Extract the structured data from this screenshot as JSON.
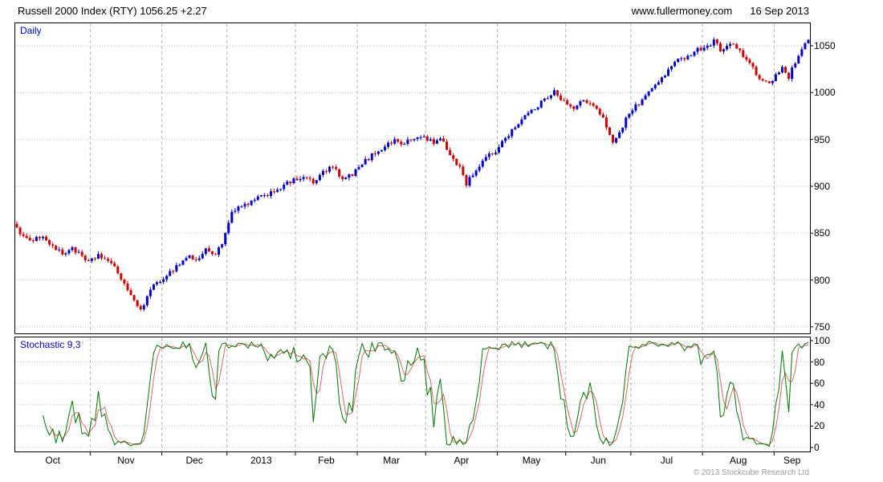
{
  "header": {
    "title": "Russell 2000 Index (RTY) 1056.25 +2.27",
    "site": "www.fullermoney.com",
    "date": "16 Sep 2013"
  },
  "main_chart": {
    "label": "Daily"
  },
  "stochastic": {
    "label": "Stochastic 9,3"
  },
  "footer": {
    "copyright": "© 2013 Stockcube Research Ltd"
  },
  "colors": {
    "up": "#0000cc",
    "down": "#cc0000",
    "k_line": "#007700",
    "d_line": "#e06666",
    "grid": "#bdbdbd",
    "grid2": "#b5b5b5",
    "panel_label": "#0000cc",
    "axis": "#000000"
  },
  "chart_data": {
    "type": "candlestick",
    "title": "Russell 2000 Index (RTY)",
    "timeframe": "Daily",
    "last_price": 1056.25,
    "change": "+2.27",
    "date": "16 Sep 2013",
    "days": 244,
    "y_axis": {
      "ticks": [
        750,
        800,
        850,
        900,
        950,
        1000,
        1050
      ],
      "range": [
        743,
        1074
      ]
    },
    "months": [
      {
        "label": "Oct",
        "start": 0
      },
      {
        "label": "Nov",
        "start": 23
      },
      {
        "label": "Dec",
        "start": 45
      },
      {
        "label": "2013",
        "start": 65
      },
      {
        "label": "Feb",
        "start": 86
      },
      {
        "label": "Mar",
        "start": 105
      },
      {
        "label": "Apr",
        "start": 126
      },
      {
        "label": "May",
        "start": 148
      },
      {
        "label": "Jun",
        "start": 169
      },
      {
        "label": "Jul",
        "start": 189
      },
      {
        "label": "Aug",
        "start": 211
      },
      {
        "label": "Sep",
        "start": 233
      }
    ],
    "anchors": [
      [
        0,
        856
      ],
      [
        2,
        846
      ],
      [
        4,
        840
      ],
      [
        6,
        848
      ],
      [
        9,
        843
      ],
      [
        12,
        833
      ],
      [
        14,
        827
      ],
      [
        17,
        835
      ],
      [
        20,
        824
      ],
      [
        22,
        818
      ],
      [
        25,
        827
      ],
      [
        28,
        820
      ],
      [
        31,
        808
      ],
      [
        34,
        790
      ],
      [
        36,
        776
      ],
      [
        38,
        769
      ],
      [
        40,
        782
      ],
      [
        42,
        793
      ],
      [
        44,
        800
      ],
      [
        47,
        808
      ],
      [
        50,
        818
      ],
      [
        53,
        826
      ],
      [
        55,
        820
      ],
      [
        58,
        832
      ],
      [
        61,
        828
      ],
      [
        63,
        840
      ],
      [
        64,
        848
      ],
      [
        66,
        872
      ],
      [
        69,
        878
      ],
      [
        73,
        885
      ],
      [
        77,
        892
      ],
      [
        81,
        899
      ],
      [
        85,
        906
      ],
      [
        88,
        911
      ],
      [
        91,
        903
      ],
      [
        94,
        915
      ],
      [
        97,
        921
      ],
      [
        100,
        906
      ],
      [
        104,
        916
      ],
      [
        107,
        927
      ],
      [
        110,
        936
      ],
      [
        113,
        943
      ],
      [
        116,
        949
      ],
      [
        119,
        946
      ],
      [
        122,
        951
      ],
      [
        125,
        953
      ],
      [
        128,
        946
      ],
      [
        130,
        951
      ],
      [
        133,
        934
      ],
      [
        136,
        920
      ],
      [
        138,
        903
      ],
      [
        141,
        918
      ],
      [
        144,
        930
      ],
      [
        147,
        938
      ],
      [
        150,
        952
      ],
      [
        153,
        964
      ],
      [
        156,
        975
      ],
      [
        159,
        983
      ],
      [
        162,
        992
      ],
      [
        165,
        1003
      ],
      [
        168,
        990
      ],
      [
        171,
        982
      ],
      [
        174,
        993
      ],
      [
        177,
        985
      ],
      [
        180,
        972
      ],
      [
        183,
        948
      ],
      [
        185,
        958
      ],
      [
        188,
        978
      ],
      [
        191,
        989
      ],
      [
        194,
        1000
      ],
      [
        197,
        1012
      ],
      [
        200,
        1024
      ],
      [
        203,
        1034
      ],
      [
        206,
        1040
      ],
      [
        209,
        1046
      ],
      [
        212,
        1050
      ],
      [
        214,
        1055
      ],
      [
        216,
        1046
      ],
      [
        219,
        1053
      ],
      [
        222,
        1044
      ],
      [
        225,
        1030
      ],
      [
        228,
        1015
      ],
      [
        231,
        1010
      ],
      [
        233,
        1018
      ],
      [
        235,
        1025
      ],
      [
        237,
        1017
      ],
      [
        239,
        1032
      ],
      [
        241,
        1044
      ],
      [
        243,
        1056.25
      ]
    ],
    "indicator": {
      "name": "Stochastic",
      "params": "9,3",
      "k_period": 9,
      "d_period": 3,
      "ticks": [
        0,
        20,
        40,
        60,
        80,
        100
      ],
      "range": [
        0,
        100
      ]
    }
  }
}
